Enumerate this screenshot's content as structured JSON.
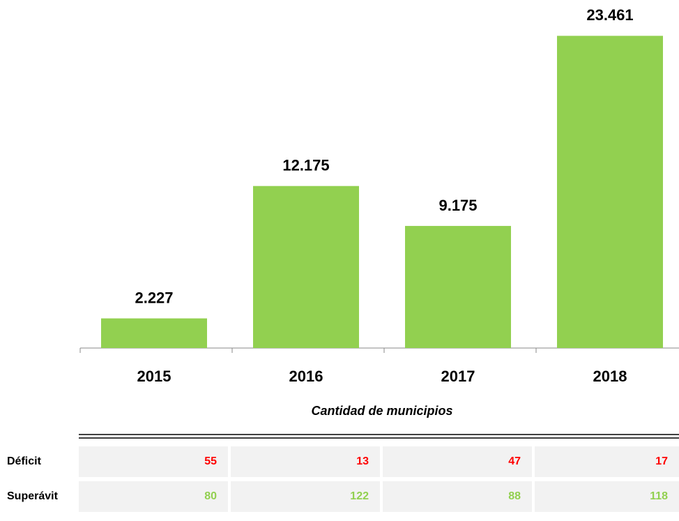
{
  "chart_data": {
    "type": "bar",
    "categories": [
      "2015",
      "2016",
      "2017",
      "2018"
    ],
    "values": [
      2227,
      12175,
      9175,
      23461
    ],
    "value_labels": [
      "2.227",
      "12.175",
      "9.175",
      "23.461"
    ],
    "color": "#92d050",
    "ylim": [
      0,
      25000
    ]
  },
  "table": {
    "title": "Cantidad de municipios",
    "rows": [
      {
        "label": "Déficit",
        "values": [
          55,
          13,
          47,
          17
        ],
        "color": "#ff0000"
      },
      {
        "label": "Superávit",
        "values": [
          80,
          122,
          88,
          118
        ],
        "color": "#92d050"
      }
    ]
  }
}
